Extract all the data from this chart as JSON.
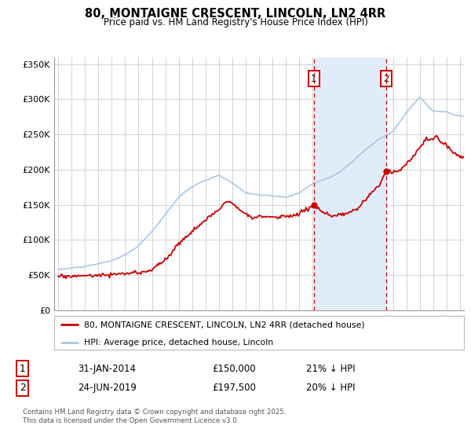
{
  "title": "80, MONTAIGNE CRESCENT, LINCOLN, LN2 4RR",
  "subtitle": "Price paid vs. HM Land Registry's House Price Index (HPI)",
  "ylim": [
    0,
    360000
  ],
  "yticks": [
    0,
    50000,
    100000,
    150000,
    200000,
    250000,
    300000,
    350000
  ],
  "ytick_labels": [
    "£0",
    "£50K",
    "£100K",
    "£150K",
    "£200K",
    "£250K",
    "£300K",
    "£350K"
  ],
  "xlim_start": 1994.7,
  "xlim_end": 2025.3,
  "marker1_x": 2014.08,
  "marker1_y": 150000,
  "marker2_x": 2019.48,
  "marker2_y": 197500,
  "vline1_x": 2014.08,
  "vline2_x": 2019.48,
  "hpi_color": "#a8c8e8",
  "price_color": "#cc0000",
  "marker_color": "#cc0000",
  "vline_color": "#cc0000",
  "legend_label_price": "80, MONTAIGNE CRESCENT, LINCOLN, LN2 4RR (detached house)",
  "legend_label_hpi": "HPI: Average price, detached house, Lincoln",
  "table_row1": [
    "1",
    "31-JAN-2014",
    "£150,000",
    "21% ↓ HPI"
  ],
  "table_row2": [
    "2",
    "24-JUN-2019",
    "£197,500",
    "20% ↓ HPI"
  ],
  "footnote": "Contains HM Land Registry data © Crown copyright and database right 2025.\nThis data is licensed under the Open Government Licence v3.0.",
  "background_color": "#ffffff",
  "grid_color": "#cccccc",
  "shaded_region_color": "#e0ecf8"
}
